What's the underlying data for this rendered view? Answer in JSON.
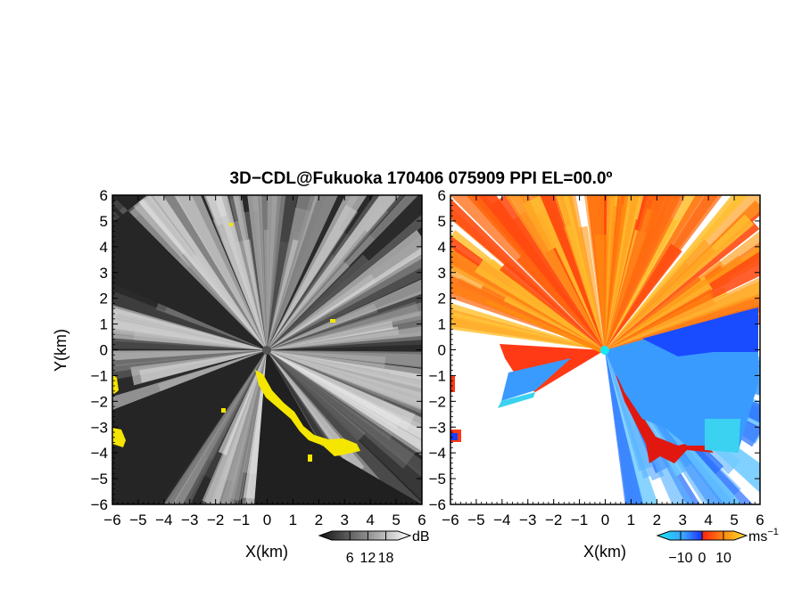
{
  "chart_data": {
    "title": "3D−CDL@Fukuoka 170406 075909 PPI EL=00.0º",
    "panels": [
      {
        "type": "heatmap",
        "variable": "reflectivity (SNR)",
        "xlabel": "X(km)",
        "ylabel": "Y(km)",
        "xlim": [
          -6,
          6
        ],
        "ylim": [
          -6,
          6
        ],
        "xticks": [
          "−6",
          "−5",
          "−4",
          "−3",
          "−2",
          "−1",
          "0",
          "1",
          "2",
          "3",
          "4",
          "5",
          "6"
        ],
        "yticks": [
          "6",
          "5",
          "4",
          "3",
          "2",
          "1",
          "0",
          "−1",
          "−2",
          "−3",
          "−4",
          "−5",
          "−6"
        ],
        "colorbar": {
          "unit": "dB",
          "tick_labels": [
            "6",
            "12",
            "18"
          ],
          "tick_values": [
            6,
            12,
            18
          ],
          "range": [
            0,
            22
          ],
          "colors": [
            "#101010",
            "#ffffff"
          ]
        },
        "highlight_color": "#f5e600",
        "background_color": "#2a2a2a"
      },
      {
        "type": "heatmap",
        "variable": "Doppler velocity",
        "xlabel": "X(km)",
        "xlim": [
          -6,
          6
        ],
        "ylim": [
          -6,
          6
        ],
        "xticks": [
          "−6",
          "−5",
          "−4",
          "−3",
          "−2",
          "−1",
          "0",
          "1",
          "2",
          "3",
          "4",
          "5",
          "6"
        ],
        "yticks": [
          "6",
          "5",
          "4",
          "3",
          "2",
          "1",
          "0",
          "−1",
          "−2",
          "−3",
          "−4",
          "−5",
          "−6"
        ],
        "colorbar": {
          "unit": "ms",
          "unit_exponent": "−1",
          "tick_labels": [
            "−10",
            "0",
            "10"
          ],
          "tick_values": [
            -10,
            0,
            10
          ],
          "range": [
            -15,
            15
          ],
          "colors": [
            "#19e6f0",
            "#3aa0ff",
            "#1a3cff",
            "#ff2a10",
            "#ff8c10",
            "#ffe030"
          ]
        }
      }
    ]
  }
}
